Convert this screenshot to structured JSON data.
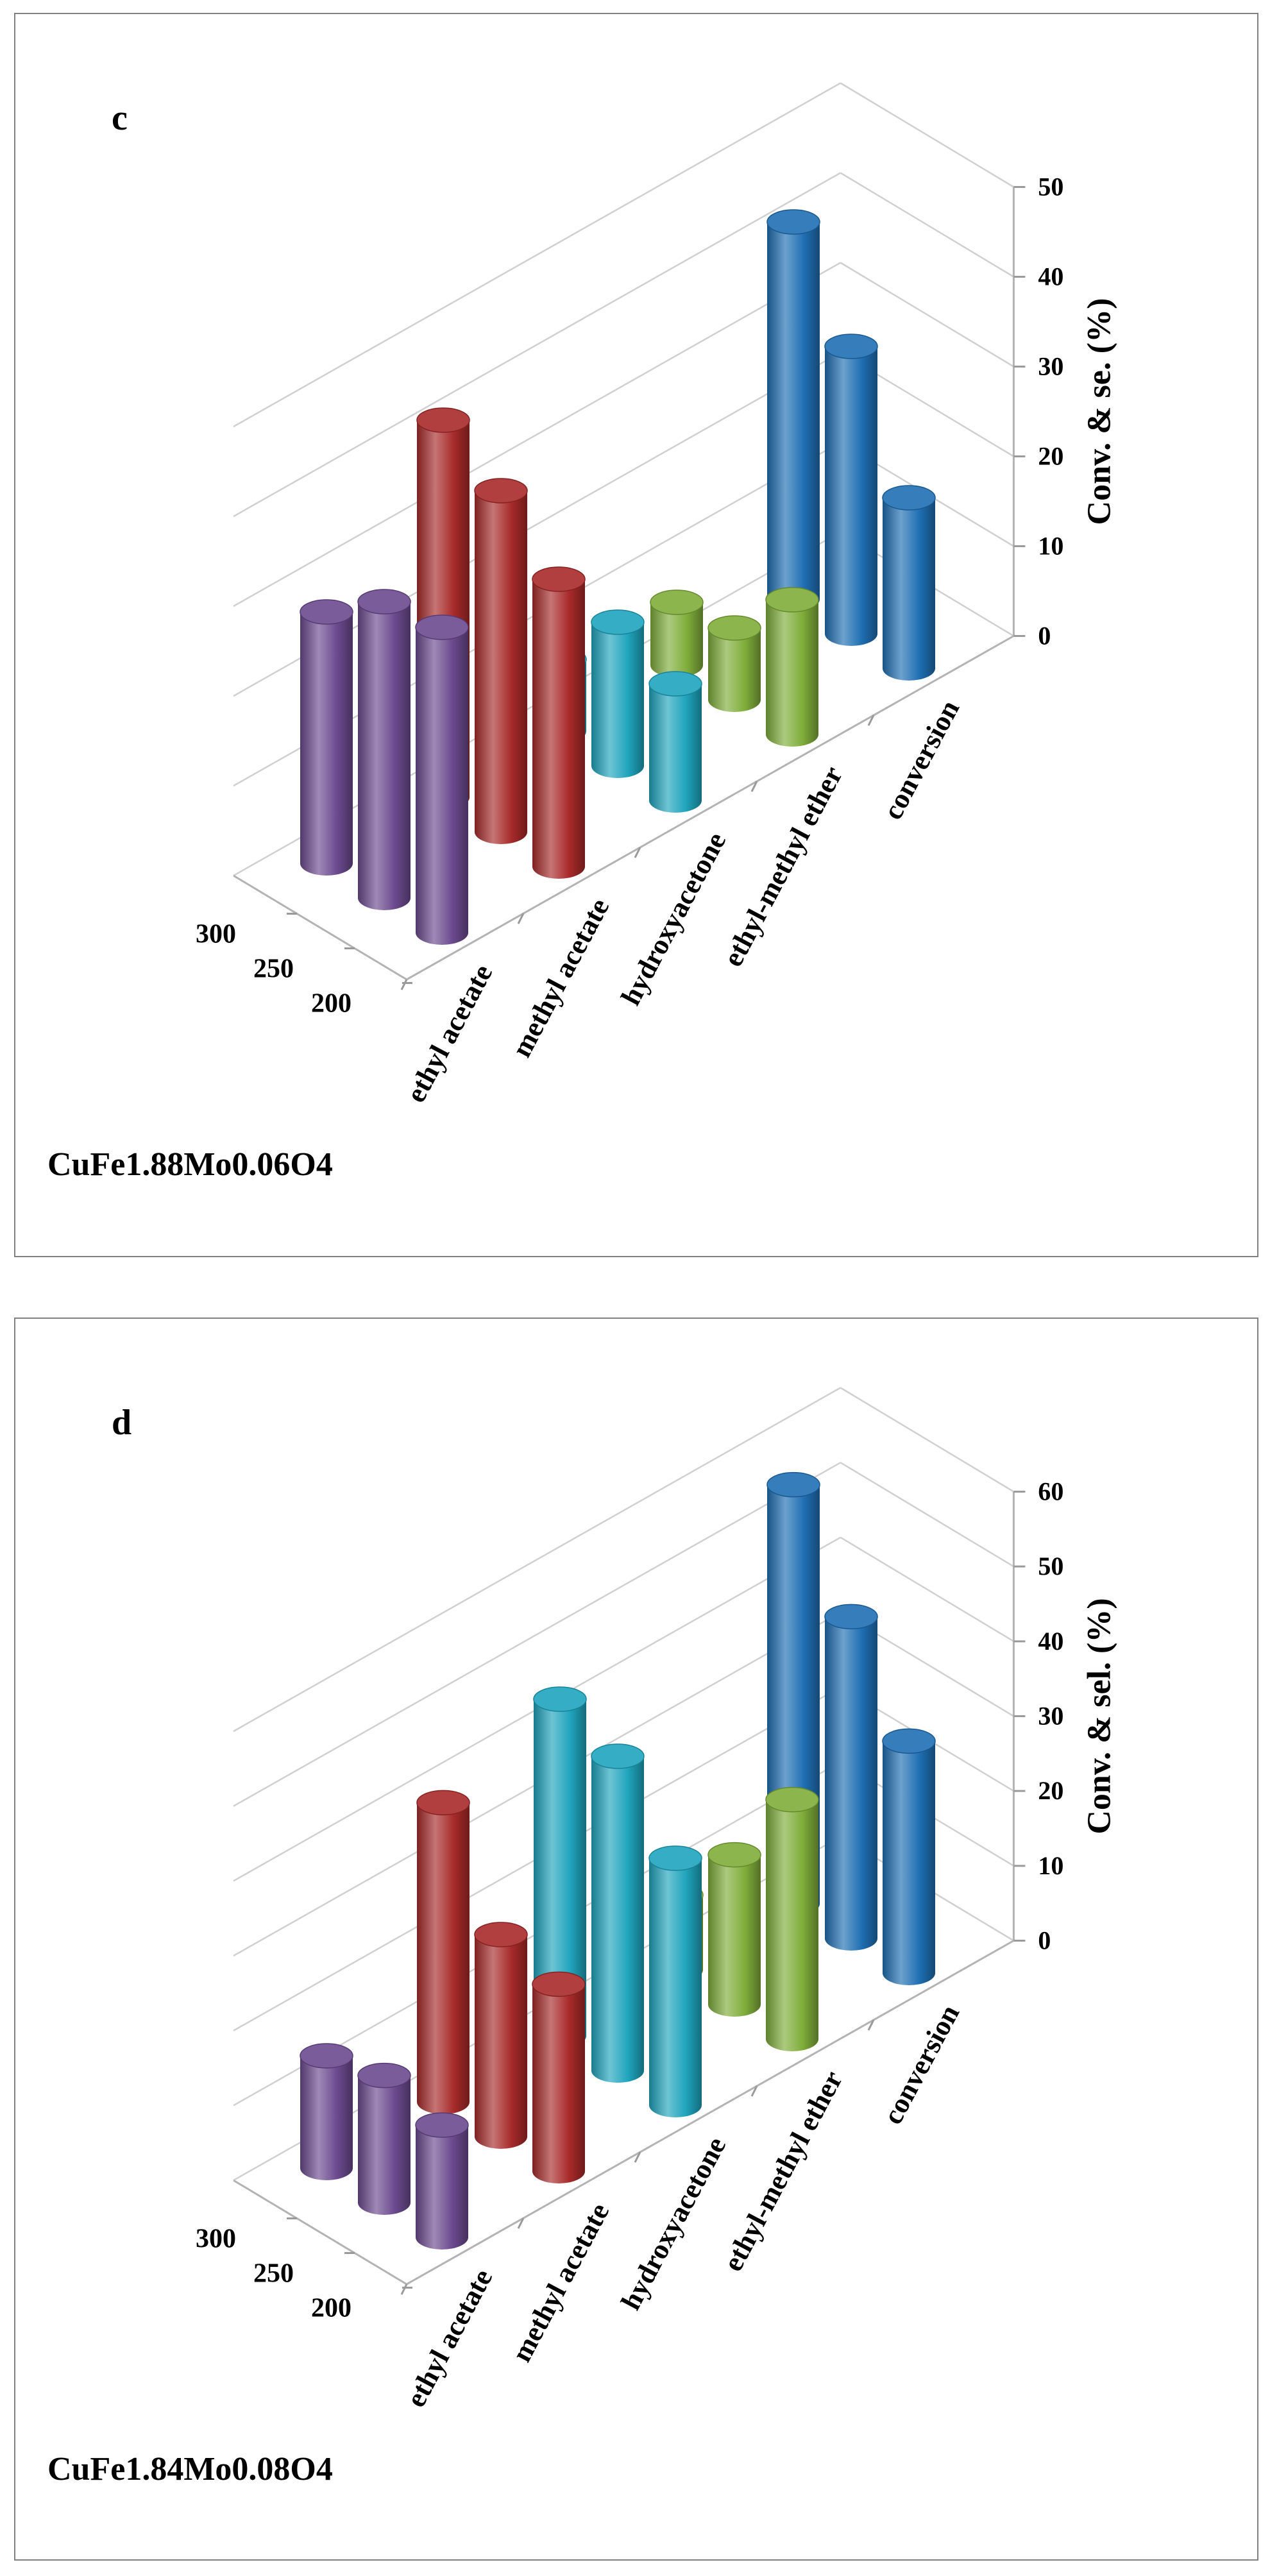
{
  "chart_data": [
    {
      "type": "bar",
      "style": "3d-cylinder",
      "panel_letter": "c",
      "caption": "CuFe1.88Mo0.06O4",
      "zlabel": "Conv. & se. (%)",
      "zlim": [
        0,
        50
      ],
      "zticks": [
        "0",
        "10",
        "20",
        "30",
        "40",
        "50"
      ],
      "temperatures": [
        "300",
        "250",
        "200"
      ],
      "categories": [
        "ethyl acetate",
        "methyl acetate",
        "hydroxyacetone",
        "ethyl-methyl ether",
        "conversion"
      ],
      "series": [
        {
          "name": "300",
          "values": [
            28,
            42,
            8,
            7,
            42
          ]
        },
        {
          "name": "250",
          "values": [
            33,
            38,
            16,
            8,
            32
          ]
        },
        {
          "name": "200",
          "values": [
            34,
            32,
            13,
            15,
            19
          ]
        }
      ],
      "colors": [
        "#6b4a8f",
        "#a82a2a",
        "#1fa4bd",
        "#7fad3a",
        "#1f6fb3"
      ]
    },
    {
      "type": "bar",
      "style": "3d-cylinder",
      "panel_letter": "d",
      "caption": "CuFe1.84Mo0.08O4",
      "zlabel": "Conv. & sel. (%)",
      "zlim": [
        0,
        60
      ],
      "zticks": [
        "0",
        "10",
        "20",
        "30",
        "40",
        "50",
        "60"
      ],
      "temperatures": [
        "300",
        "250",
        "200"
      ],
      "categories": [
        "ethyl acetate",
        "methyl acetate",
        "hydroxyacetone",
        "ethyl-methyl ether",
        "conversion"
      ],
      "series": [
        {
          "name": "300",
          "values": [
            15,
            40,
            45,
            10,
            56
          ]
        },
        {
          "name": "250",
          "values": [
            17,
            27,
            42,
            20,
            43
          ]
        },
        {
          "name": "200",
          "values": [
            15,
            25,
            33,
            32,
            31
          ]
        }
      ],
      "colors": [
        "#6b4a8f",
        "#a82a2a",
        "#1fa4bd",
        "#7fad3a",
        "#1f6fb3"
      ]
    }
  ]
}
